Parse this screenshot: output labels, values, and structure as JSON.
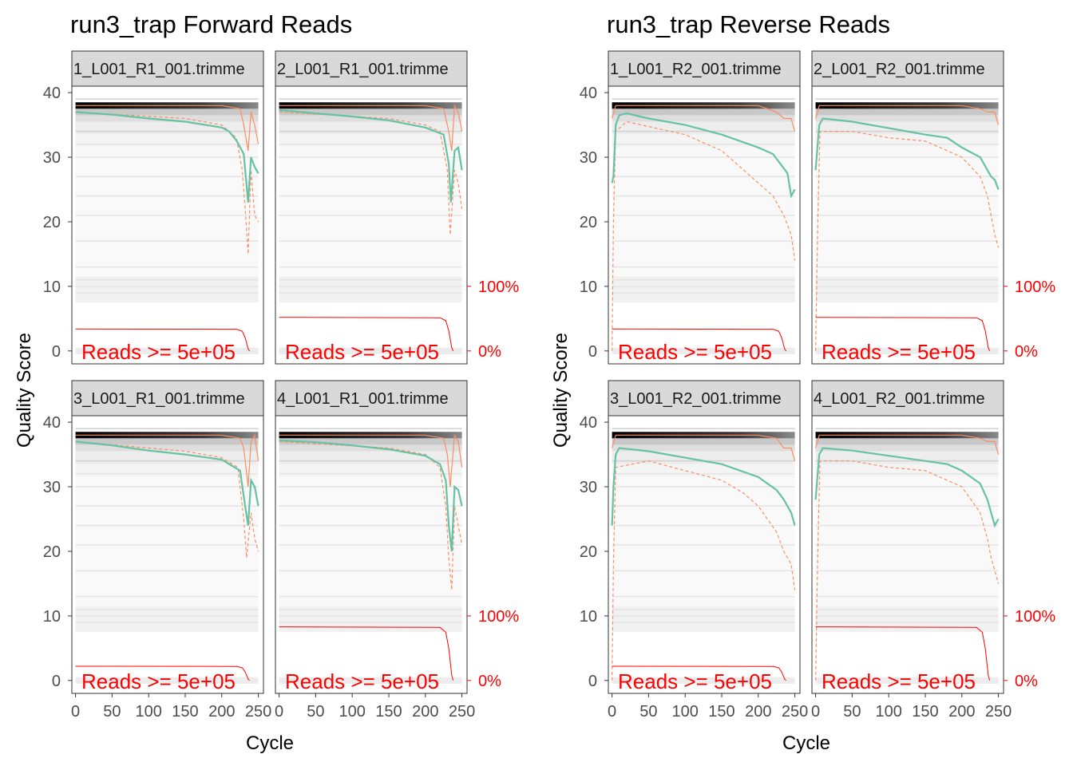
{
  "colors": {
    "mean_line": "#66c2a5",
    "quantile_lines": "#fc8d62",
    "reads_line": "#ff0000",
    "reads_text": "#ff0000",
    "strip_bg": "#d9d9d9",
    "heat_dark": "#000000",
    "heat_light": "#f2f2f2"
  },
  "chart_data": [
    {
      "type": "line",
      "title": "run3_trap Forward Reads",
      "xlabel": "Cycle",
      "ylabel": "Quality Score",
      "xlim": [
        -5,
        257
      ],
      "ylim": [
        -2,
        41
      ],
      "x_ticks": [
        0,
        50,
        100,
        150,
        200,
        250
      ],
      "y_ticks": [
        0,
        10,
        20,
        30,
        40
      ],
      "right_axis_labels": [
        "100%",
        "0%"
      ],
      "grid": false,
      "panels": [
        {
          "strip": "1_L001_R1_001.trimme",
          "reads_label": "Reads >=  5e+05",
          "reads_fraction": 0.34,
          "mean": [
            [
              0,
              37
            ],
            [
              50,
              36.6
            ],
            [
              100,
              36
            ],
            [
              150,
              35.5
            ],
            [
              200,
              34.6
            ],
            [
              210,
              34
            ],
            [
              220,
              32.6
            ],
            [
              230,
              30.5
            ],
            [
              236,
              23
            ],
            [
              240,
              30
            ],
            [
              245,
              28.5
            ],
            [
              250,
              27.5
            ]
          ],
          "q25": [
            [
              0,
              37
            ],
            [
              150,
              36
            ],
            [
              200,
              35
            ],
            [
              220,
              33
            ],
            [
              228,
              28
            ],
            [
              232,
              22
            ],
            [
              236,
              15
            ],
            [
              240,
              28
            ],
            [
              245,
              21
            ],
            [
              250,
              20
            ]
          ],
          "q75": [
            [
              0,
              38
            ],
            [
              200,
              38
            ],
            [
              225,
              37.5
            ],
            [
              230,
              35
            ],
            [
              236,
              31
            ],
            [
              240,
              37
            ],
            [
              245,
              35
            ],
            [
              250,
              32
            ]
          ]
        },
        {
          "strip": "2_L001_R1_001.trimme",
          "reads_label": "Reads >=  5e+05",
          "reads_fraction": 0.52,
          "mean": [
            [
              0,
              37.3
            ],
            [
              50,
              36.8
            ],
            [
              100,
              36.3
            ],
            [
              150,
              35.7
            ],
            [
              200,
              34.6
            ],
            [
              225,
              33.5
            ],
            [
              232,
              29
            ],
            [
              235,
              23
            ],
            [
              240,
              31
            ],
            [
              245,
              31.5
            ],
            [
              250,
              28
            ]
          ],
          "q25": [
            [
              0,
              37
            ],
            [
              150,
              36
            ],
            [
              200,
              35
            ],
            [
              220,
              34
            ],
            [
              230,
              28
            ],
            [
              234,
              18
            ],
            [
              240,
              28
            ],
            [
              245,
              26
            ],
            [
              250,
              22
            ]
          ],
          "q75": [
            [
              0,
              38
            ],
            [
              200,
              38
            ],
            [
              225,
              37.5
            ],
            [
              232,
              34
            ],
            [
              236,
              31
            ],
            [
              240,
              38
            ],
            [
              245,
              37
            ],
            [
              250,
              34
            ]
          ]
        },
        {
          "strip": "3_L001_R1_001.trimme",
          "reads_label": "Reads >=  5e+05",
          "reads_fraction": 0.22,
          "mean": [
            [
              0,
              37
            ],
            [
              50,
              36.4
            ],
            [
              100,
              35.6
            ],
            [
              150,
              35
            ],
            [
              200,
              34.2
            ],
            [
              225,
              32.5
            ],
            [
              232,
              27
            ],
            [
              236,
              24
            ],
            [
              240,
              31
            ],
            [
              245,
              30
            ],
            [
              250,
              27
            ]
          ],
          "q25": [
            [
              0,
              37
            ],
            [
              150,
              35.5
            ],
            [
              200,
              34.5
            ],
            [
              222,
              33
            ],
            [
              230,
              25
            ],
            [
              234,
              19
            ],
            [
              240,
              26
            ],
            [
              245,
              22
            ],
            [
              250,
              20
            ]
          ],
          "q75": [
            [
              0,
              38
            ],
            [
              200,
              38
            ],
            [
              225,
              37.5
            ],
            [
              230,
              36
            ],
            [
              236,
              30
            ],
            [
              240,
              37
            ],
            [
              245,
              38
            ],
            [
              250,
              34
            ]
          ]
        },
        {
          "strip": "4_L001_R1_001.trimme",
          "reads_label": "Reads >=  5e+05",
          "reads_fraction": 0.83,
          "mean": [
            [
              0,
              37.2
            ],
            [
              50,
              36.9
            ],
            [
              100,
              36.4
            ],
            [
              150,
              35.8
            ],
            [
              200,
              34.8
            ],
            [
              220,
              33.5
            ],
            [
              228,
              31
            ],
            [
              232,
              24
            ],
            [
              236,
              20
            ],
            [
              240,
              30
            ],
            [
              245,
              29.5
            ],
            [
              250,
              27
            ]
          ],
          "q25": [
            [
              0,
              37
            ],
            [
              150,
              36
            ],
            [
              200,
              35
            ],
            [
              220,
              33
            ],
            [
              228,
              27
            ],
            [
              232,
              19
            ],
            [
              236,
              14
            ],
            [
              240,
              27
            ],
            [
              245,
              24
            ],
            [
              250,
              21
            ]
          ],
          "q75": [
            [
              0,
              38
            ],
            [
              200,
              38
            ],
            [
              225,
              37.5
            ],
            [
              230,
              35
            ],
            [
              234,
              30
            ],
            [
              240,
              38
            ],
            [
              245,
              37
            ],
            [
              250,
              33
            ]
          ]
        }
      ]
    },
    {
      "type": "line",
      "title": "run3_trap Reverse Reads",
      "xlabel": "Cycle",
      "ylabel": "Quality Score",
      "xlim": [
        -5,
        257
      ],
      "ylim": [
        -2,
        41
      ],
      "x_ticks": [
        0,
        50,
        100,
        150,
        200,
        250
      ],
      "y_ticks": [
        0,
        10,
        20,
        30,
        40
      ],
      "right_axis_labels": [
        "100%",
        "0%"
      ],
      "grid": false,
      "panels": [
        {
          "strip": "1_L001_R2_001.trimme",
          "reads_label": "Reads >=  5e+05",
          "reads_fraction": 0.34,
          "mean": [
            [
              0,
              26
            ],
            [
              2,
              27
            ],
            [
              5,
              35
            ],
            [
              10,
              36.5
            ],
            [
              20,
              36.8
            ],
            [
              50,
              36
            ],
            [
              100,
              35
            ],
            [
              150,
              33.5
            ],
            [
              200,
              31.5
            ],
            [
              220,
              30.5
            ],
            [
              230,
              29
            ],
            [
              240,
              27.5
            ],
            [
              245,
              24
            ],
            [
              250,
              25
            ]
          ],
          "q25": [
            [
              0,
              0
            ],
            [
              2,
              20
            ],
            [
              5,
              34
            ],
            [
              20,
              35.5
            ],
            [
              100,
              33.5
            ],
            [
              150,
              31
            ],
            [
              180,
              28
            ],
            [
              200,
              26
            ],
            [
              220,
              24
            ],
            [
              235,
              21
            ],
            [
              245,
              18
            ],
            [
              250,
              14
            ]
          ],
          "q75": [
            [
              0,
              36
            ],
            [
              5,
              38
            ],
            [
              200,
              38
            ],
            [
              225,
              37
            ],
            [
              235,
              36
            ],
            [
              245,
              36
            ],
            [
              250,
              34
            ]
          ]
        },
        {
          "strip": "2_L001_R2_001.trimme",
          "reads_label": "Reads >=  5e+05",
          "reads_fraction": 0.52,
          "mean": [
            [
              0,
              28
            ],
            [
              5,
              35
            ],
            [
              10,
              36
            ],
            [
              50,
              35.5
            ],
            [
              100,
              34.5
            ],
            [
              150,
              33.5
            ],
            [
              180,
              33
            ],
            [
              200,
              31.5
            ],
            [
              225,
              30
            ],
            [
              235,
              28
            ],
            [
              240,
              27
            ],
            [
              245,
              26.5
            ],
            [
              250,
              25
            ]
          ],
          "q25": [
            [
              0,
              0
            ],
            [
              3,
              20
            ],
            [
              6,
              34
            ],
            [
              50,
              34
            ],
            [
              100,
              33
            ],
            [
              150,
              32.5
            ],
            [
              200,
              30
            ],
            [
              225,
              27
            ],
            [
              235,
              24
            ],
            [
              240,
              21
            ],
            [
              245,
              18
            ],
            [
              250,
              16
            ]
          ],
          "q75": [
            [
              0,
              36
            ],
            [
              5,
              38
            ],
            [
              200,
              38
            ],
            [
              225,
              37.5
            ],
            [
              235,
              37
            ],
            [
              245,
              37
            ],
            [
              250,
              35
            ]
          ]
        },
        {
          "strip": "3_L001_R2_001.trimme",
          "reads_label": "Reads >=  5e+05",
          "reads_fraction": 0.22,
          "mean": [
            [
              0,
              24
            ],
            [
              2,
              30
            ],
            [
              5,
              35
            ],
            [
              10,
              36
            ],
            [
              50,
              35.5
            ],
            [
              100,
              34.5
            ],
            [
              150,
              33.5
            ],
            [
              200,
              31.5
            ],
            [
              225,
              29.5
            ],
            [
              235,
              28
            ],
            [
              245,
              26
            ],
            [
              250,
              24
            ]
          ],
          "q25": [
            [
              0,
              0
            ],
            [
              2,
              18
            ],
            [
              5,
              33
            ],
            [
              50,
              34
            ],
            [
              100,
              32.5
            ],
            [
              150,
              31
            ],
            [
              180,
              29
            ],
            [
              200,
              27
            ],
            [
              225,
              23
            ],
            [
              235,
              20
            ],
            [
              245,
              18
            ],
            [
              250,
              14
            ]
          ],
          "q75": [
            [
              0,
              36
            ],
            [
              5,
              38
            ],
            [
              200,
              38
            ],
            [
              225,
              37.5
            ],
            [
              235,
              36
            ],
            [
              245,
              36
            ],
            [
              250,
              34
            ]
          ]
        },
        {
          "strip": "4_L001_R2_001.trimme",
          "reads_label": "Reads >=  5e+05",
          "reads_fraction": 0.83,
          "mean": [
            [
              0,
              28
            ],
            [
              5,
              35
            ],
            [
              10,
              36
            ],
            [
              50,
              35.6
            ],
            [
              100,
              34.8
            ],
            [
              150,
              34
            ],
            [
              180,
              33.5
            ],
            [
              200,
              32.5
            ],
            [
              225,
              30.5
            ],
            [
              235,
              28
            ],
            [
              240,
              26
            ],
            [
              245,
              24
            ],
            [
              250,
              25
            ]
          ],
          "q25": [
            [
              0,
              0
            ],
            [
              3,
              20
            ],
            [
              6,
              34
            ],
            [
              50,
              34
            ],
            [
              100,
              33
            ],
            [
              150,
              32.5
            ],
            [
              200,
              30
            ],
            [
              225,
              26
            ],
            [
              235,
              22
            ],
            [
              240,
              19
            ],
            [
              245,
              17
            ],
            [
              250,
              15
            ]
          ],
          "q75": [
            [
              0,
              36
            ],
            [
              5,
              38
            ],
            [
              200,
              38
            ],
            [
              225,
              37.5
            ],
            [
              235,
              37
            ],
            [
              245,
              37
            ],
            [
              250,
              35
            ]
          ]
        }
      ]
    }
  ]
}
